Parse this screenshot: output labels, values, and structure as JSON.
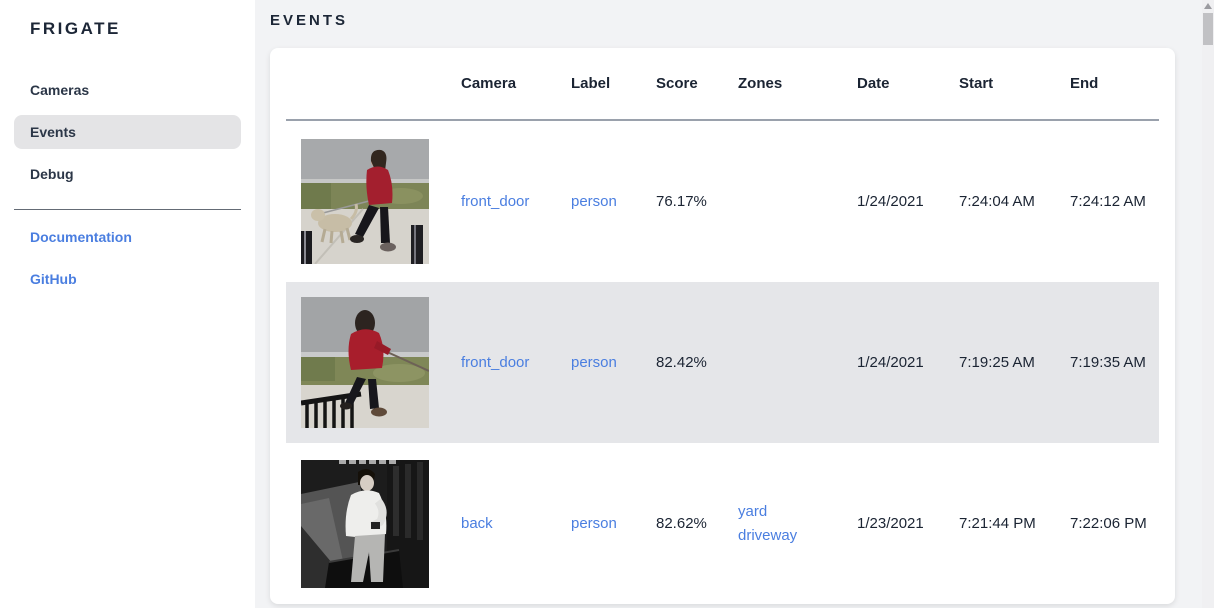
{
  "app": {
    "name": "FRIGATE"
  },
  "sidebar": {
    "items": [
      {
        "label": "Cameras",
        "active": false
      },
      {
        "label": "Events",
        "active": true
      },
      {
        "label": "Debug",
        "active": false
      }
    ],
    "links": [
      {
        "label": "Documentation"
      },
      {
        "label": "GitHub"
      }
    ]
  },
  "header": {
    "title": "EVENTS"
  },
  "table": {
    "columns": [
      "",
      "Camera",
      "Label",
      "Score",
      "Zones",
      "Date",
      "Start",
      "End"
    ],
    "rows": [
      {
        "thumbnail": "person-red-coat-walking-dog",
        "camera": "front_door",
        "label": "person",
        "score": "76.17%",
        "zones": [],
        "date": "1/24/2021",
        "start": "7:24:04 AM",
        "end": "7:24:12 AM"
      },
      {
        "thumbnail": "person-red-hoodie-dog-leash",
        "camera": "front_door",
        "label": "person",
        "score": "82.42%",
        "zones": [],
        "date": "1/24/2021",
        "start": "7:19:25 AM",
        "end": "7:19:35 AM"
      },
      {
        "thumbnail": "person-night-infrared",
        "camera": "back",
        "label": "person",
        "score": "82.62%",
        "zones": [
          "yard",
          "driveway"
        ],
        "date": "1/23/2021",
        "start": "7:21:44 PM",
        "end": "7:22:06 PM"
      }
    ]
  },
  "colors": {
    "link_blue": "#4a7ee0",
    "row_stripe": "#e5e6e9",
    "sidebar_active_bg": "#e4e4e6",
    "main_bg": "#f2f3f5",
    "text_dark": "#1b2433"
  }
}
